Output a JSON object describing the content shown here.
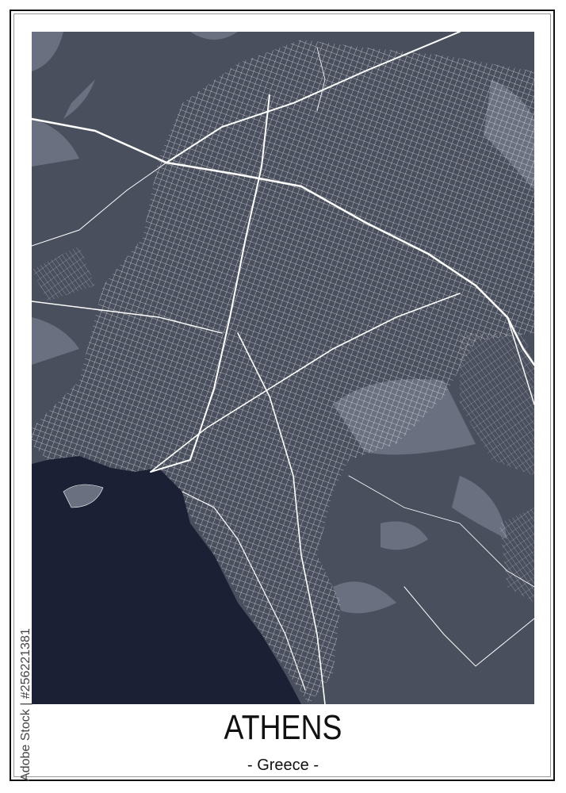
{
  "poster": {
    "city": "ATHENS",
    "country": "- Greece -",
    "watermark": "Adobe Stock | #256221381"
  },
  "colors": {
    "land": "#4a4f5e",
    "terrain": "#6b7080",
    "sea": "#1c2035",
    "roads": "#ffffff",
    "frame": "#111111"
  }
}
